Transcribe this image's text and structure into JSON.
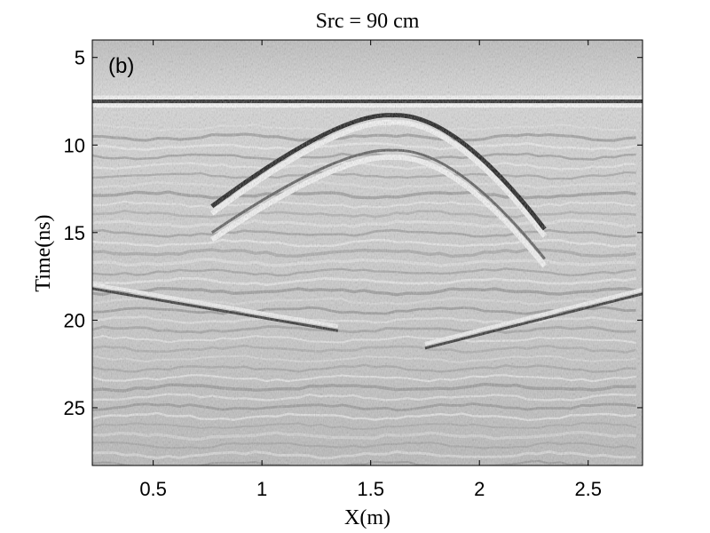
{
  "chart_data": {
    "type": "heatmap",
    "title": "Src = 90 cm",
    "xlabel": "X(m)",
    "ylabel": "Time(ns)",
    "panel_label": "(b)",
    "xlim": [
      0.22,
      2.75
    ],
    "ylim": [
      4,
      28.3
    ],
    "y_reversed": true,
    "x_ticks": [
      0.5,
      1,
      1.5,
      2,
      2.5
    ],
    "x_tick_labels": [
      "0.5",
      "1",
      "1.5",
      "2",
      "2.5"
    ],
    "y_ticks": [
      5,
      10,
      15,
      20,
      25
    ],
    "y_tick_labels": [
      "5",
      "10",
      "15",
      "20",
      "25"
    ],
    "colormap": "grayscale",
    "grid": false,
    "features": [
      {
        "kind": "horizontal-reflection",
        "time_ns": 7.5,
        "x_range": [
          0.22,
          2.75
        ]
      },
      {
        "kind": "hyperbola",
        "apex_x_m": 1.6,
        "apex_time_ns": 8.3,
        "left_end_time_ns": 13.5,
        "right_end_time_ns": 14.8
      },
      {
        "kind": "hyperbola",
        "apex_x_m": 1.6,
        "apex_time_ns": 10.3,
        "left_end_time_ns": 15.0,
        "right_end_time_ns": 16.5
      },
      {
        "kind": "dipping-reflection",
        "from": [
          0.22,
          18.2
        ],
        "to": [
          1.35,
          20.6
        ]
      },
      {
        "kind": "dipping-reflection",
        "from": [
          1.75,
          21.6
        ],
        "to": [
          2.75,
          18.5
        ]
      }
    ]
  },
  "colors": {
    "background": "#ffffff",
    "axes_border": "#000000",
    "plot_base": "#cfcfcf",
    "dark_band": "#1f1f1f",
    "light_band": "#f4f4f4"
  }
}
